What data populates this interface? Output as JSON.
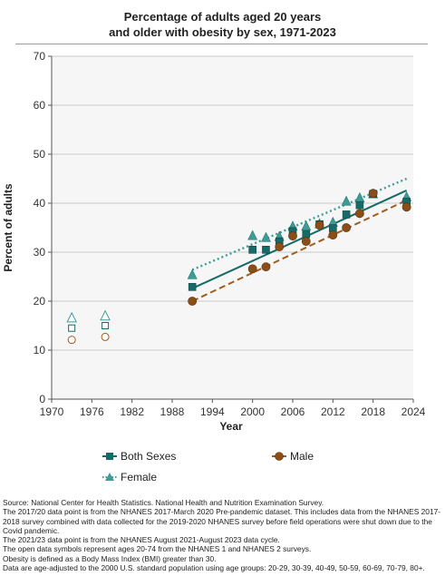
{
  "chart_data": {
    "type": "line",
    "title_line1": "Percentage of adults aged 20 years",
    "title_line2": "and older with obesity by sex, 1971-2023",
    "xlabel": "Year",
    "ylabel": "Percent of adults",
    "xlim": [
      1970,
      2024
    ],
    "ylim": [
      0,
      70
    ],
    "xticks": [
      1970,
      1976,
      1982,
      1988,
      1994,
      2000,
      2006,
      2012,
      2018,
      2024
    ],
    "yticks": [
      0,
      10,
      20,
      30,
      40,
      50,
      60,
      70
    ],
    "grid": "horizontal",
    "legend_position": "bottom",
    "series": [
      {
        "name": "Both Sexes",
        "color": "#166a67",
        "marker": "square",
        "x": [
          1991,
          2000,
          2002,
          2004,
          2006,
          2008,
          2010,
          2012,
          2014,
          2016,
          2018,
          2023
        ],
        "values": [
          22.9,
          30.5,
          30.5,
          32.2,
          34.3,
          33.7,
          35.7,
          34.9,
          37.7,
          39.6,
          41.9,
          40.3
        ],
        "open_x": [
          1973,
          1978
        ],
        "open_values": [
          14.5,
          15.0
        ],
        "trend": [
          [
            1991,
            22.6
          ],
          [
            2023,
            42.6
          ]
        ]
      },
      {
        "name": "Male",
        "color": "#a05c1c",
        "marker": "circle",
        "x": [
          1991,
          2000,
          2002,
          2004,
          2006,
          2008,
          2010,
          2012,
          2014,
          2016,
          2018,
          2023
        ],
        "values": [
          20.0,
          26.6,
          27.0,
          31.1,
          33.3,
          32.2,
          35.5,
          33.5,
          35.0,
          37.9,
          42.0,
          39.2
        ],
        "open_x": [
          1973,
          1978
        ],
        "open_values": [
          12.1,
          12.7
        ],
        "trend": [
          [
            1991,
            20.0
          ],
          [
            2023,
            40.6
          ]
        ]
      },
      {
        "name": "Female",
        "color": "#3e9c96",
        "marker": "triangle",
        "x": [
          1991,
          2000,
          2002,
          2004,
          2006,
          2008,
          2010,
          2012,
          2014,
          2016,
          2018,
          2023
        ],
        "values": [
          25.4,
          33.4,
          33.0,
          33.2,
          35.3,
          35.3,
          35.8,
          36.1,
          40.4,
          41.1,
          41.9,
          41.3
        ],
        "open_x": [
          1973,
          1978
        ],
        "open_values": [
          16.6,
          17.0
        ],
        "trend": [
          [
            1991,
            26.4
          ],
          [
            2023,
            45.0
          ]
        ]
      }
    ]
  },
  "legend": {
    "both": "Both Sexes",
    "male": "Male",
    "female": "Female"
  },
  "notes": {
    "line1": "Source: National Center for Health Statistics. National Health and Nutrition Examination Survey.",
    "line2": "The 2017/20 data point is from the NHANES 2017-March 2020 Pre-pandemic dataset. This includes data from the NHANES 2017-2018 survey combined with data collected for the 2019-2020 NHANES survey before field operations were shut down due to the Covid pandemic.",
    "line3": "The 2021/23 data point is from the NHANES August 2021-August 2023 data cycle.",
    "line4": "The open data symbols represent ages 20-74 from the NHANES 1 and NHANES 2 surveys.",
    "line5": "Obesity is defined as a Body Mass Index (BMI) greater than 30.",
    "line6": "Data are age-adjusted to the 2000 U.S. standard population using age groups: 20-29, 30-39, 40-49, 50-59, 60-69, 70-79, 80+."
  }
}
